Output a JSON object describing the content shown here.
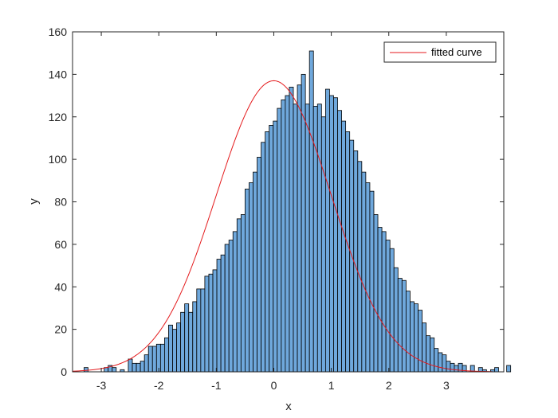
{
  "chart_data": {
    "type": "bar",
    "title": "",
    "xlabel": "x",
    "ylabel": "y",
    "xlim": [
      -3.5,
      4.0
    ],
    "ylim": [
      0,
      160
    ],
    "xticks": [
      "-3",
      "-2",
      "-1",
      "0",
      "1",
      "2",
      "3"
    ],
    "xtick_values": [
      -3,
      -2,
      -1,
      0,
      1,
      2,
      3
    ],
    "yticks": [
      "0",
      "20",
      "40",
      "60",
      "80",
      "100",
      "120",
      "140",
      "160"
    ],
    "ytick_values": [
      0,
      20,
      40,
      60,
      80,
      100,
      120,
      140,
      160
    ],
    "grid": false,
    "legend_position": "top-right",
    "bar_color": "#6fa8dc",
    "bar_edge_color": "#000000",
    "curve_color": "#e41a1c",
    "bin_start": -3.3,
    "bin_width": 0.07,
    "histogram_counts": [
      2,
      0,
      0,
      0,
      0,
      2,
      3,
      2,
      0,
      1,
      0,
      6,
      4,
      4,
      5,
      8,
      12,
      12,
      13,
      13,
      16,
      22,
      20,
      23,
      28,
      32,
      28,
      33,
      39,
      39,
      45,
      46,
      48,
      53,
      55,
      60,
      62,
      66,
      72,
      74,
      86,
      89,
      94,
      101,
      108,
      113,
      116,
      118,
      124,
      128,
      130,
      134,
      126,
      135,
      140,
      126,
      151,
      125,
      126,
      120,
      133,
      130,
      129,
      123,
      118,
      113,
      109,
      104,
      99,
      94,
      89,
      85,
      74,
      68,
      66,
      62,
      58,
      49,
      44,
      43,
      38,
      33,
      32,
      29,
      23,
      17,
      16,
      11,
      9,
      8,
      5,
      4,
      3,
      4,
      3,
      0,
      3,
      0,
      2,
      1,
      0,
      1,
      2,
      0,
      0,
      3
    ],
    "series": [
      {
        "name": "fitted curve",
        "type": "line",
        "mu": 0.0,
        "sigma": 1.0,
        "peak": 137,
        "x_range": [
          -3.5,
          3.8
        ]
      }
    ]
  }
}
